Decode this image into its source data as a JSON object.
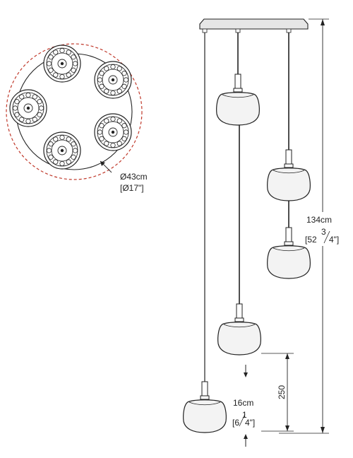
{
  "top_view": {
    "diameter_metric": "Ø43cm",
    "diameter_imperial": "[Ø17\"]",
    "shade_count": 5
  },
  "side_view": {
    "overall_height": {
      "metric": "134cm",
      "imperial_whole": "[52",
      "imperial_fraction_num": "3",
      "imperial_fraction_den": "4\"]"
    },
    "shade_width": {
      "metric": "16cm",
      "imperial_whole": "[6",
      "imperial_fraction_num": "1",
      "imperial_fraction_den": "4\"]"
    },
    "vertical_spacing": "250"
  },
  "colors": {
    "line": "#222222",
    "shade_fill": "#f3f3f3",
    "dashed_circle": "#c0392b",
    "canopy": "#e6e6e6"
  }
}
